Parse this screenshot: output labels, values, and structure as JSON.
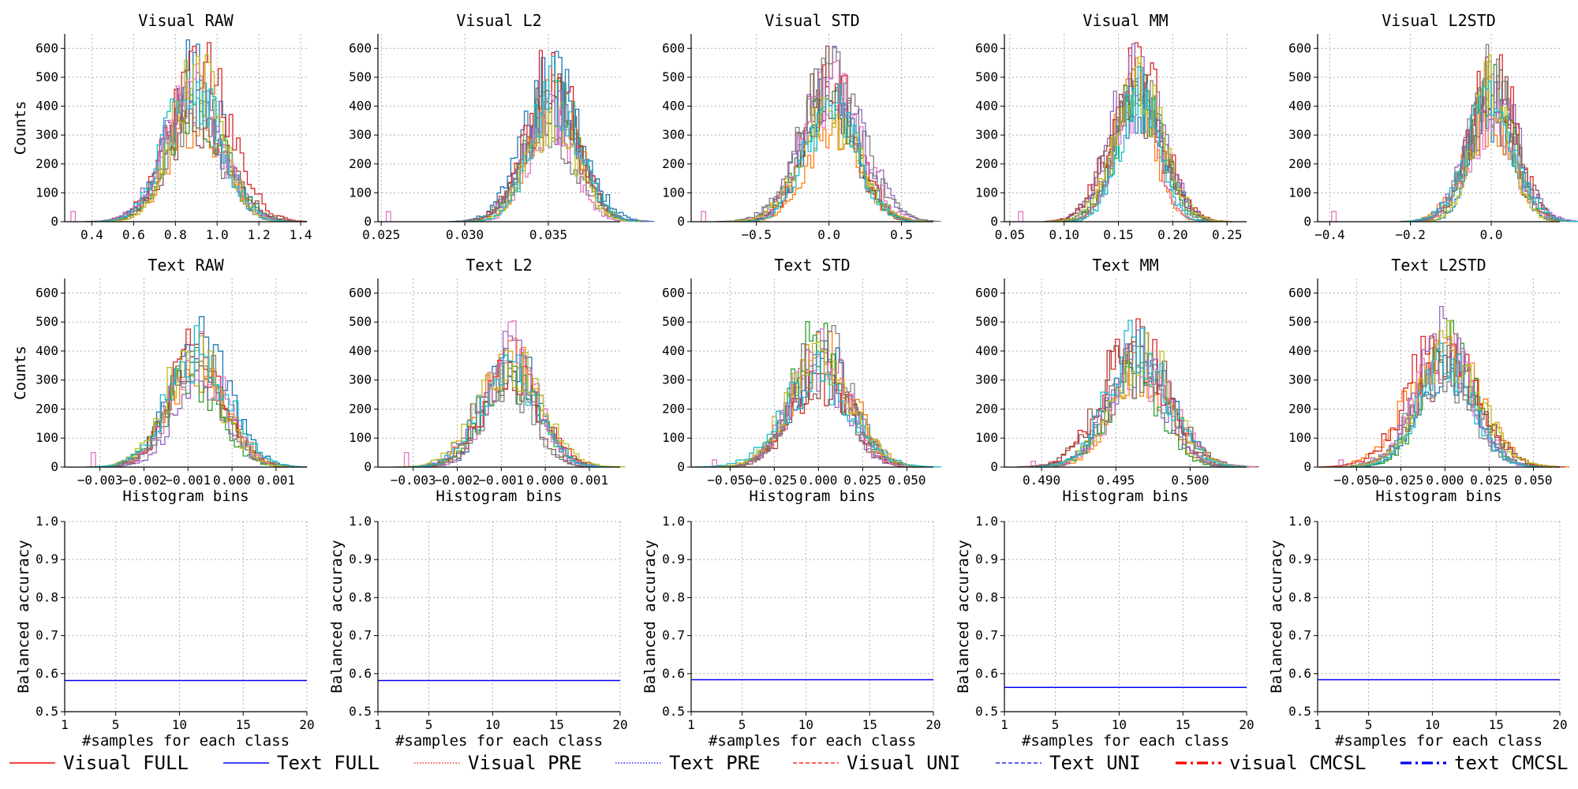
{
  "chart_data": {
    "type": "figure-grid",
    "layout": {
      "rows": 3,
      "cols": 5
    },
    "histogram_palette": [
      "#1f77b4",
      "#ff7f0e",
      "#2ca02c",
      "#d62728",
      "#9467bd",
      "#8c564b",
      "#e377c2",
      "#7f7f7f",
      "#bcbd22",
      "#17becf"
    ],
    "histograms": [
      {
        "title": "Visual RAW",
        "ylabel": "Counts",
        "xlabel": "",
        "xlim": [
          0.27,
          1.43
        ],
        "ylim": [
          0,
          650
        ],
        "xticks": [
          0.4,
          0.6,
          0.8,
          1.0,
          1.2,
          1.4
        ],
        "xtick_labels": [
          "0.4",
          "0.6",
          "0.8",
          "1.0",
          "1.2",
          "1.4"
        ],
        "yticks": [
          0,
          100,
          200,
          300,
          400,
          500,
          600
        ],
        "center": 0.9,
        "spread": 0.13,
        "peak": 430,
        "bins": 60,
        "outlier": [
          0.3,
          35
        ]
      },
      {
        "title": "Visual L2",
        "ylabel": "",
        "xlabel": "",
        "xlim": [
          0.0248,
          0.0393
        ],
        "ylim": [
          0,
          650
        ],
        "xticks": [
          0.025,
          0.03,
          0.035
        ],
        "xtick_labels": [
          "0.025",
          "0.030",
          "0.035"
        ],
        "yticks": [
          0,
          100,
          200,
          300,
          400,
          500,
          600
        ],
        "center": 0.0352,
        "spread": 0.0015,
        "peak": 420,
        "bins": 60,
        "outlier": [
          0.0253,
          35
        ]
      },
      {
        "title": "Visual STD",
        "ylabel": "",
        "xlabel": "",
        "xlim": [
          -0.95,
          0.72
        ],
        "ylim": [
          0,
          650
        ],
        "xticks": [
          -0.5,
          0.0,
          0.5
        ],
        "xtick_labels": [
          "−0.5",
          "0.0",
          "0.5"
        ],
        "yticks": [
          0,
          100,
          200,
          300,
          400,
          500,
          600
        ],
        "center": 0.0,
        "spread": 0.19,
        "peak": 400,
        "bins": 60,
        "outlier": [
          -0.88,
          35
        ]
      },
      {
        "title": "Visual MM",
        "ylabel": "",
        "xlabel": "",
        "xlim": [
          0.045,
          0.268
        ],
        "ylim": [
          0,
          650
        ],
        "xticks": [
          0.05,
          0.1,
          0.15,
          0.2,
          0.25
        ],
        "xtick_labels": [
          "0.05",
          "0.10",
          "0.15",
          "0.20",
          "0.25"
        ],
        "yticks": [
          0,
          100,
          200,
          300,
          400,
          500,
          600
        ],
        "center": 0.168,
        "spread": 0.021,
        "peak": 440,
        "bins": 60,
        "outlier": [
          0.058,
          35
        ]
      },
      {
        "title": "Visual L2STD",
        "ylabel": "",
        "xlabel": "",
        "xlim": [
          -0.43,
          0.17
        ],
        "ylim": [
          0,
          650
        ],
        "xticks": [
          -0.4,
          -0.2,
          0.0
        ],
        "xtick_labels": [
          "−0.4",
          "−0.2",
          "0.0"
        ],
        "yticks": [
          0,
          100,
          200,
          300,
          400,
          500,
          600
        ],
        "center": 0.0,
        "spread": 0.055,
        "peak": 420,
        "bins": 60,
        "outlier": [
          -0.395,
          35
        ]
      },
      {
        "title": "Text RAW",
        "ylabel": "Counts",
        "xlabel": "Histogram bins",
        "xlim": [
          -0.0038,
          0.0017
        ],
        "ylim": [
          0,
          650
        ],
        "xticks": [
          -0.003,
          -0.002,
          -0.001,
          0.0,
          0.001
        ],
        "xtick_labels": [
          "−0.003",
          "−0.002",
          "−0.001",
          "0.000",
          "0.001"
        ],
        "yticks": [
          0,
          100,
          200,
          300,
          400,
          500,
          600
        ],
        "center": -0.0008,
        "spread": 0.00065,
        "peak": 330,
        "bins": 45,
        "outlier": [
          -0.0032,
          50
        ]
      },
      {
        "title": "Text L2",
        "ylabel": "",
        "xlabel": "Histogram bins",
        "xlim": [
          -0.0038,
          0.0017
        ],
        "ylim": [
          0,
          650
        ],
        "xticks": [
          -0.003,
          -0.002,
          -0.001,
          0.0,
          0.001
        ],
        "xtick_labels": [
          "−0.003",
          "−0.002",
          "−0.001",
          "0.000",
          "0.001"
        ],
        "yticks": [
          0,
          100,
          200,
          300,
          400,
          500,
          600
        ],
        "center": -0.0008,
        "spread": 0.00065,
        "peak": 330,
        "bins": 45,
        "outlier": [
          -0.0032,
          50
        ]
      },
      {
        "title": "Text STD",
        "ylabel": "",
        "xlabel": "Histogram bins",
        "xlim": [
          -0.072,
          0.065
        ],
        "ylim": [
          0,
          650
        ],
        "xticks": [
          -0.05,
          -0.025,
          0.0,
          0.025,
          0.05
        ],
        "xtick_labels": [
          "−0.050",
          "−0.025",
          "0.000",
          "0.025",
          "0.050"
        ],
        "yticks": [
          0,
          100,
          200,
          300,
          400,
          500,
          600
        ],
        "center": 0.0,
        "spread": 0.017,
        "peak": 360,
        "bins": 55,
        "outlier": [
          -0.06,
          25
        ]
      },
      {
        "title": "Text MM",
        "ylabel": "",
        "xlabel": "Histogram bins",
        "xlim": [
          0.4875,
          0.5038
        ],
        "ylim": [
          0,
          650
        ],
        "xticks": [
          0.49,
          0.495,
          0.5
        ],
        "xtick_labels": [
          "0.490",
          "0.495",
          "0.500"
        ],
        "yticks": [
          0,
          100,
          200,
          300,
          400,
          500,
          600
        ],
        "center": 0.4965,
        "spread": 0.002,
        "peak": 350,
        "bins": 55,
        "outlier": [
          0.4893,
          20
        ]
      },
      {
        "title": "Text L2STD",
        "ylabel": "",
        "xlabel": "Histogram bins",
        "xlim": [
          -0.072,
          0.065
        ],
        "ylim": [
          0,
          650
        ],
        "xticks": [
          -0.05,
          -0.025,
          0.0,
          0.025,
          0.05
        ],
        "xtick_labels": [
          "−0.050",
          "−0.025",
          "0.000",
          "0.025",
          "0.050"
        ],
        "yticks": [
          0,
          100,
          200,
          300,
          400,
          500,
          600
        ],
        "center": 0.0,
        "spread": 0.017,
        "peak": 360,
        "bins": 55,
        "outlier": [
          -0.06,
          25
        ]
      }
    ],
    "accuracy_panels": [
      {
        "ylabel": "Balanced accuracy",
        "xlabel": "#samples for each class",
        "xlim": [
          1,
          20
        ],
        "ylim": [
          0.5,
          1.0
        ],
        "xticks": [
          1,
          5,
          10,
          15,
          20
        ],
        "yticks": [
          0.5,
          0.6,
          0.7,
          0.8,
          0.9,
          1.0
        ],
        "series": [
          {
            "name": "Text FULL",
            "x": [
              1,
              20
            ],
            "y": [
              0.582,
              0.582
            ]
          }
        ]
      },
      {
        "ylabel": "Balanced accuracy",
        "xlabel": "#samples for each class",
        "xlim": [
          1,
          20
        ],
        "ylim": [
          0.5,
          1.0
        ],
        "xticks": [
          1,
          5,
          10,
          15,
          20
        ],
        "yticks": [
          0.5,
          0.6,
          0.7,
          0.8,
          0.9,
          1.0
        ],
        "series": [
          {
            "name": "Text FULL",
            "x": [
              1,
              20
            ],
            "y": [
              0.582,
              0.582
            ]
          }
        ]
      },
      {
        "ylabel": "Balanced accuracy",
        "xlabel": "#samples for each class",
        "xlim": [
          1,
          20
        ],
        "ylim": [
          0.5,
          1.0
        ],
        "xticks": [
          1,
          5,
          10,
          15,
          20
        ],
        "yticks": [
          0.5,
          0.6,
          0.7,
          0.8,
          0.9,
          1.0
        ],
        "series": [
          {
            "name": "Text FULL",
            "x": [
              1,
              20
            ],
            "y": [
              0.584,
              0.584
            ]
          }
        ]
      },
      {
        "ylabel": "Balanced accuracy",
        "xlabel": "#samples for each class",
        "xlim": [
          1,
          20
        ],
        "ylim": [
          0.5,
          1.0
        ],
        "xticks": [
          1,
          5,
          10,
          15,
          20
        ],
        "yticks": [
          0.5,
          0.6,
          0.7,
          0.8,
          0.9,
          1.0
        ],
        "series": [
          {
            "name": "Text FULL",
            "x": [
              1,
              20
            ],
            "y": [
              0.564,
              0.564
            ]
          }
        ]
      },
      {
        "ylabel": "Balanced accuracy",
        "xlabel": "#samples for each class",
        "xlim": [
          1,
          20
        ],
        "ylim": [
          0.5,
          1.0
        ],
        "xticks": [
          1,
          5,
          10,
          15,
          20
        ],
        "yticks": [
          0.5,
          0.6,
          0.7,
          0.8,
          0.9,
          1.0
        ],
        "series": [
          {
            "name": "Text FULL",
            "x": [
              1,
              20
            ],
            "y": [
              0.584,
              0.584
            ]
          }
        ]
      }
    ],
    "legend": {
      "placement": "bottom",
      "entries": [
        {
          "label": "Visual FULL",
          "color": "#ff0000",
          "style": "solid"
        },
        {
          "label": "Text FULL",
          "color": "#0000ff",
          "style": "solid"
        },
        {
          "label": "Visual PRE",
          "color": "#ff0000",
          "style": "dotted"
        },
        {
          "label": "Text PRE",
          "color": "#0000ff",
          "style": "dotted"
        },
        {
          "label": "Visual UNI",
          "color": "#ff0000",
          "style": "dashed"
        },
        {
          "label": "Text UNI",
          "color": "#0000ff",
          "style": "dashed"
        },
        {
          "label": "visual CMCSL",
          "color": "#ff0000",
          "style": "dashdot-bold"
        },
        {
          "label": "text CMCSL",
          "color": "#0000ff",
          "style": "dashdot-bold"
        }
      ]
    },
    "grid": true
  }
}
